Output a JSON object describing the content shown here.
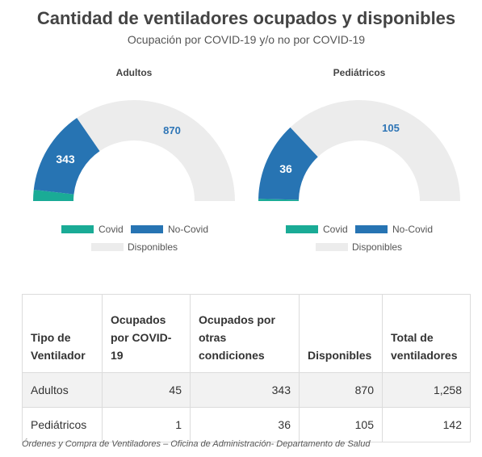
{
  "chart_data": {
    "type": "gauge",
    "title": "Cantidad de ventiladores ocupados y disponibles",
    "subtitle": "Ocupación por COVID-19 y/o no por COVID-19",
    "legend": {
      "covid": "Covid",
      "nocovid": "No-Covid",
      "disponibles": "Disponibles"
    },
    "gauges": [
      {
        "title": "Adultos",
        "covid": 45,
        "nocovid": 343,
        "disponibles": 870
      },
      {
        "title": "Pediátricos",
        "covid": 1,
        "nocovid": 36,
        "disponibles": 105
      }
    ]
  },
  "colors": {
    "covid": "#1aab96",
    "nocovid": "#2774b3",
    "disponibles": "#ececec",
    "available_label": "#2e75b6"
  },
  "table": {
    "headers": [
      "Tipo de Ventilador",
      "Ocupados por COVID-19",
      "Ocupados por otras condiciones",
      "Disponibles",
      "Total de ventiladores"
    ],
    "rows": [
      [
        "Adultos",
        "45",
        "343",
        "870",
        "1,258"
      ],
      [
        "Pediátricos",
        "1",
        "36",
        "105",
        "142"
      ]
    ]
  },
  "footer": "Órdenes y Compra de Ventiladores – Oficina de Administración- Departamento de Salud"
}
